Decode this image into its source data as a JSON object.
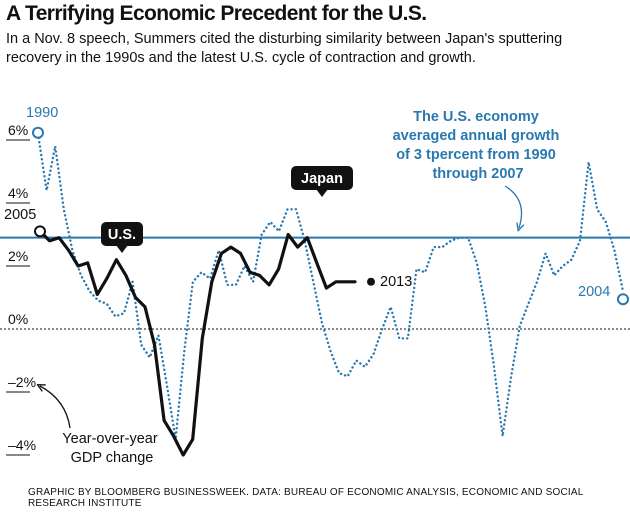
{
  "header": {
    "title": "A Terrifying Economic Precedent for the U.S.",
    "subtitle": "In a Nov. 8 speech, Summers cited the disturbing similarity between Japan's sputtering recovery in the 1990s and the latest U.S. cycle of contraction and growth."
  },
  "footer": {
    "source": "GRAPHIC BY BLOOMBERG BUSINESSWEEK. DATA: BUREAU OF ECONOMIC ANALYSIS, ECONOMIC AND SOCIAL RESEARCH INSTITUTE"
  },
  "colors": {
    "japan": "#2a78b0",
    "us": "#111111",
    "average_line": "#2a78b0"
  },
  "chart_data": {
    "type": "line",
    "title": "A Terrifying Economic Precedent for the U.S.",
    "ylabel": "Year-over-year GDP change",
    "ylim": [
      -4.5,
      7.0
    ],
    "y_ticks": [
      {
        "value": 6,
        "label": "6%"
      },
      {
        "value": 4,
        "label": "4%"
      },
      {
        "value": 2,
        "label": "2%"
      },
      {
        "value": 0,
        "label": "0%"
      },
      {
        "value": -2,
        "label": "–2%"
      },
      {
        "value": -4,
        "label": "–4%"
      }
    ],
    "axis_annotation": "Year-over-year GDP change",
    "reference_line": {
      "value": 2.9,
      "label": "The U.S. economy averaged annual growth of 3 tpercent from 1990 through 2007"
    },
    "series": [
      {
        "name": "Japan",
        "label": "Japan",
        "start_label": "1990",
        "end_label": "2004",
        "style": "dotted",
        "values": [
          6.2,
          4.4,
          5.8,
          3.8,
          2.5,
          1.7,
          1.2,
          0.9,
          0.8,
          0.4,
          0.5,
          1.5,
          -0.5,
          -0.9,
          -0.2,
          -1.8,
          -3.5,
          -0.7,
          1.5,
          1.8,
          1.6,
          2.5,
          1.4,
          1.4,
          2.0,
          1.5,
          3.0,
          3.4,
          3.1,
          3.8,
          3.8,
          2.8,
          1.5,
          0.2,
          -0.7,
          -1.4,
          -1.5,
          -1.0,
          -1.2,
          -0.8,
          0.0,
          0.7,
          -0.3,
          -0.3,
          1.9,
          1.8,
          2.6,
          2.6,
          2.8,
          2.9,
          2.9,
          2.1,
          0.7,
          -1.2,
          -3.4,
          -1.5,
          0.1,
          0.8,
          1.5,
          2.4,
          1.7,
          2.0,
          2.2,
          2.8,
          5.3,
          3.8,
          3.4,
          2.5,
          1.2
        ]
      },
      {
        "name": "U.S.",
        "label": "U.S.",
        "start_label": "2005",
        "end_label": "2013",
        "style": "solid",
        "values": [
          3.1,
          2.8,
          2.9,
          2.5,
          2.0,
          2.1,
          1.1,
          1.6,
          2.2,
          1.7,
          1.0,
          0.7,
          -0.5,
          -2.9,
          -3.4,
          -4.0,
          -3.5,
          -0.3,
          1.5,
          2.4,
          2.6,
          2.4,
          1.8,
          1.7,
          1.4,
          1.9,
          3.0,
          2.6,
          2.9,
          2.1,
          1.3,
          1.5,
          1.5,
          1.5
        ]
      }
    ]
  }
}
